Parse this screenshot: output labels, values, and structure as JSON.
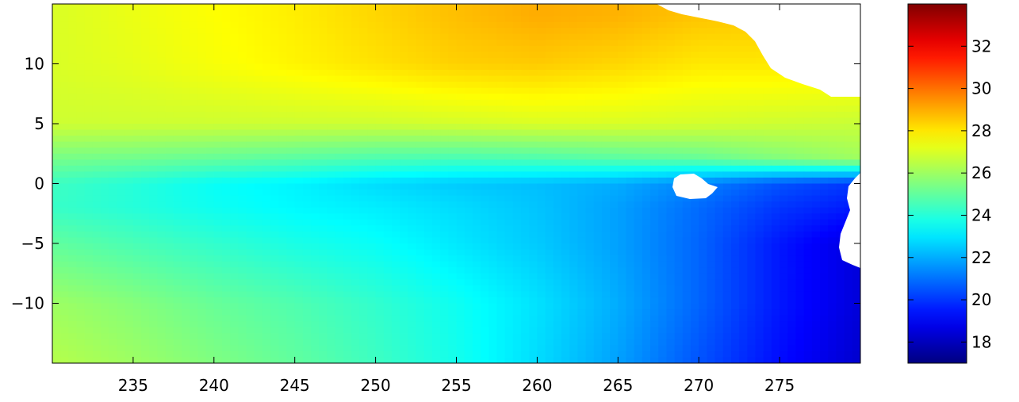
{
  "chart_data": [
    {
      "type": "heatmap",
      "title": "",
      "xlabel": "",
      "ylabel": "",
      "xlim": [
        230,
        280
      ],
      "ylim": [
        -15,
        15
      ],
      "xticks": [
        235,
        240,
        245,
        250,
        255,
        260,
        265,
        270,
        275
      ],
      "xtick_labels": [
        "235",
        "240",
        "245",
        "250",
        "255",
        "260",
        "265",
        "270",
        "275"
      ],
      "yticks": [
        10,
        5,
        0,
        -5,
        -10
      ],
      "ytick_labels": [
        "10",
        "5",
        "0",
        "−5",
        "−10"
      ],
      "colormap": "jet",
      "grid": false,
      "x": [
        230,
        235,
        240,
        245,
        250,
        255,
        260,
        265,
        270,
        275,
        280
      ],
      "y": [
        14,
        10,
        5,
        2,
        0,
        -2,
        -5,
        -10,
        -15
      ],
      "z": [
        [
          27.0,
          27.3,
          27.6,
          27.9,
          28.3,
          28.7,
          29.0,
          28.9,
          28.6,
          28.5,
          28.4
        ],
        [
          27.0,
          27.2,
          27.5,
          27.8,
          28.1,
          28.4,
          28.5,
          28.3,
          28.0,
          28.0,
          28.0
        ],
        [
          26.8,
          26.8,
          26.8,
          26.8,
          26.8,
          26.9,
          27.0,
          27.0,
          26.9,
          26.8,
          26.7
        ],
        [
          25.3,
          25.2,
          25.0,
          24.8,
          24.6,
          24.5,
          24.6,
          24.8,
          25.0,
          25.5,
          26.0
        ],
        [
          24.4,
          24.0,
          23.5,
          23.2,
          22.8,
          22.5,
          22.3,
          22.0,
          21.3,
          20.5,
          20.0
        ],
        [
          24.3,
          24.0,
          23.6,
          23.3,
          23.1,
          22.8,
          22.4,
          21.8,
          20.9,
          20.0,
          19.5
        ],
        [
          25.0,
          24.6,
          24.2,
          23.8,
          23.5,
          23.0,
          22.5,
          21.8,
          20.8,
          19.5,
          18.5
        ],
        [
          26.0,
          25.6,
          25.1,
          24.7,
          24.2,
          23.6,
          22.9,
          22.0,
          20.8,
          19.5,
          18.5
        ],
        [
          26.4,
          26.0,
          25.5,
          25.0,
          24.4,
          23.7,
          22.8,
          21.8,
          20.5,
          19.3,
          18.3
        ]
      ],
      "colorbar": {
        "clim": [
          17,
          34
        ],
        "ticks": [
          18,
          20,
          22,
          24,
          26,
          28,
          30,
          32
        ],
        "tick_labels": [
          "18",
          "20",
          "22",
          "24",
          "26",
          "28",
          "30",
          "32"
        ]
      }
    }
  ]
}
